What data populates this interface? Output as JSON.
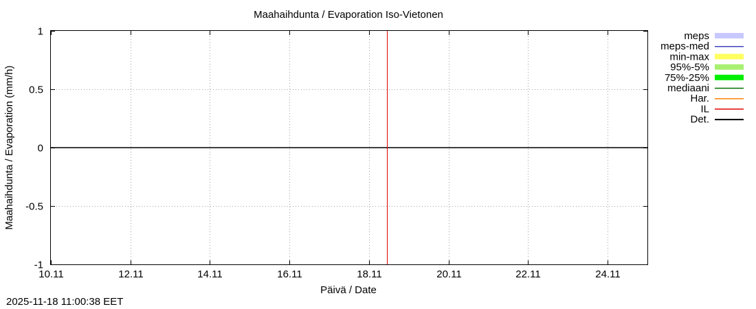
{
  "chart_data": {
    "type": "line",
    "title": "Maahaihdunta / Evaporation  Iso-Vietonen",
    "xlabel": "Päivä / Date",
    "ylabel": "Maahaihdunta / Evaporation (mm/h)",
    "xlim": [
      "2025-11-10",
      "2025-11-25"
    ],
    "ylim": [
      -1,
      1
    ],
    "x_ticks": [
      {
        "date": "2025-11-10",
        "label": "10.11"
      },
      {
        "date": "2025-11-12",
        "label": "12.11"
      },
      {
        "date": "2025-11-14",
        "label": "14.11"
      },
      {
        "date": "2025-11-16",
        "label": "16.11"
      },
      {
        "date": "2025-11-18",
        "label": "18.11"
      },
      {
        "date": "2025-11-20",
        "label": "20.11"
      },
      {
        "date": "2025-11-22",
        "label": "22.11"
      },
      {
        "date": "2025-11-24",
        "label": "24.11"
      }
    ],
    "y_ticks": [
      {
        "value": 1,
        "label": "1"
      },
      {
        "value": 0.5,
        "label": "0.5"
      },
      {
        "value": 0,
        "label": "0"
      },
      {
        "value": -0.5,
        "label": "-0.5"
      },
      {
        "value": -1,
        "label": "-1"
      }
    ],
    "grid": true,
    "legend_position": "right",
    "legend": [
      {
        "name": "meps",
        "color": "#c8c8ff",
        "style": "band"
      },
      {
        "name": "meps-med",
        "color": "#4040c0",
        "style": "line"
      },
      {
        "name": "min-max",
        "color": "#ffff60",
        "style": "band"
      },
      {
        "name": "95%-5%",
        "color": "#a8f070",
        "style": "band"
      },
      {
        "name": "75%-25%",
        "color": "#00ee00",
        "style": "band"
      },
      {
        "name": "mediaani",
        "color": "#007000",
        "style": "line"
      },
      {
        "name": "Har.",
        "color": "#ff8000",
        "style": "line"
      },
      {
        "name": "IL",
        "color": "#e00000",
        "style": "line"
      },
      {
        "name": "Det.",
        "color": "#000000",
        "style": "line"
      }
    ],
    "series": [
      {
        "name": "Det.",
        "color": "#000000",
        "points": [
          {
            "x": "2025-11-10",
            "y": 0
          },
          {
            "x": "2025-11-25",
            "y": 0
          }
        ]
      }
    ],
    "forecast_start": "2025-11-18 11:00"
  },
  "timestamp": "2025-11-18 11:00:38 EET"
}
